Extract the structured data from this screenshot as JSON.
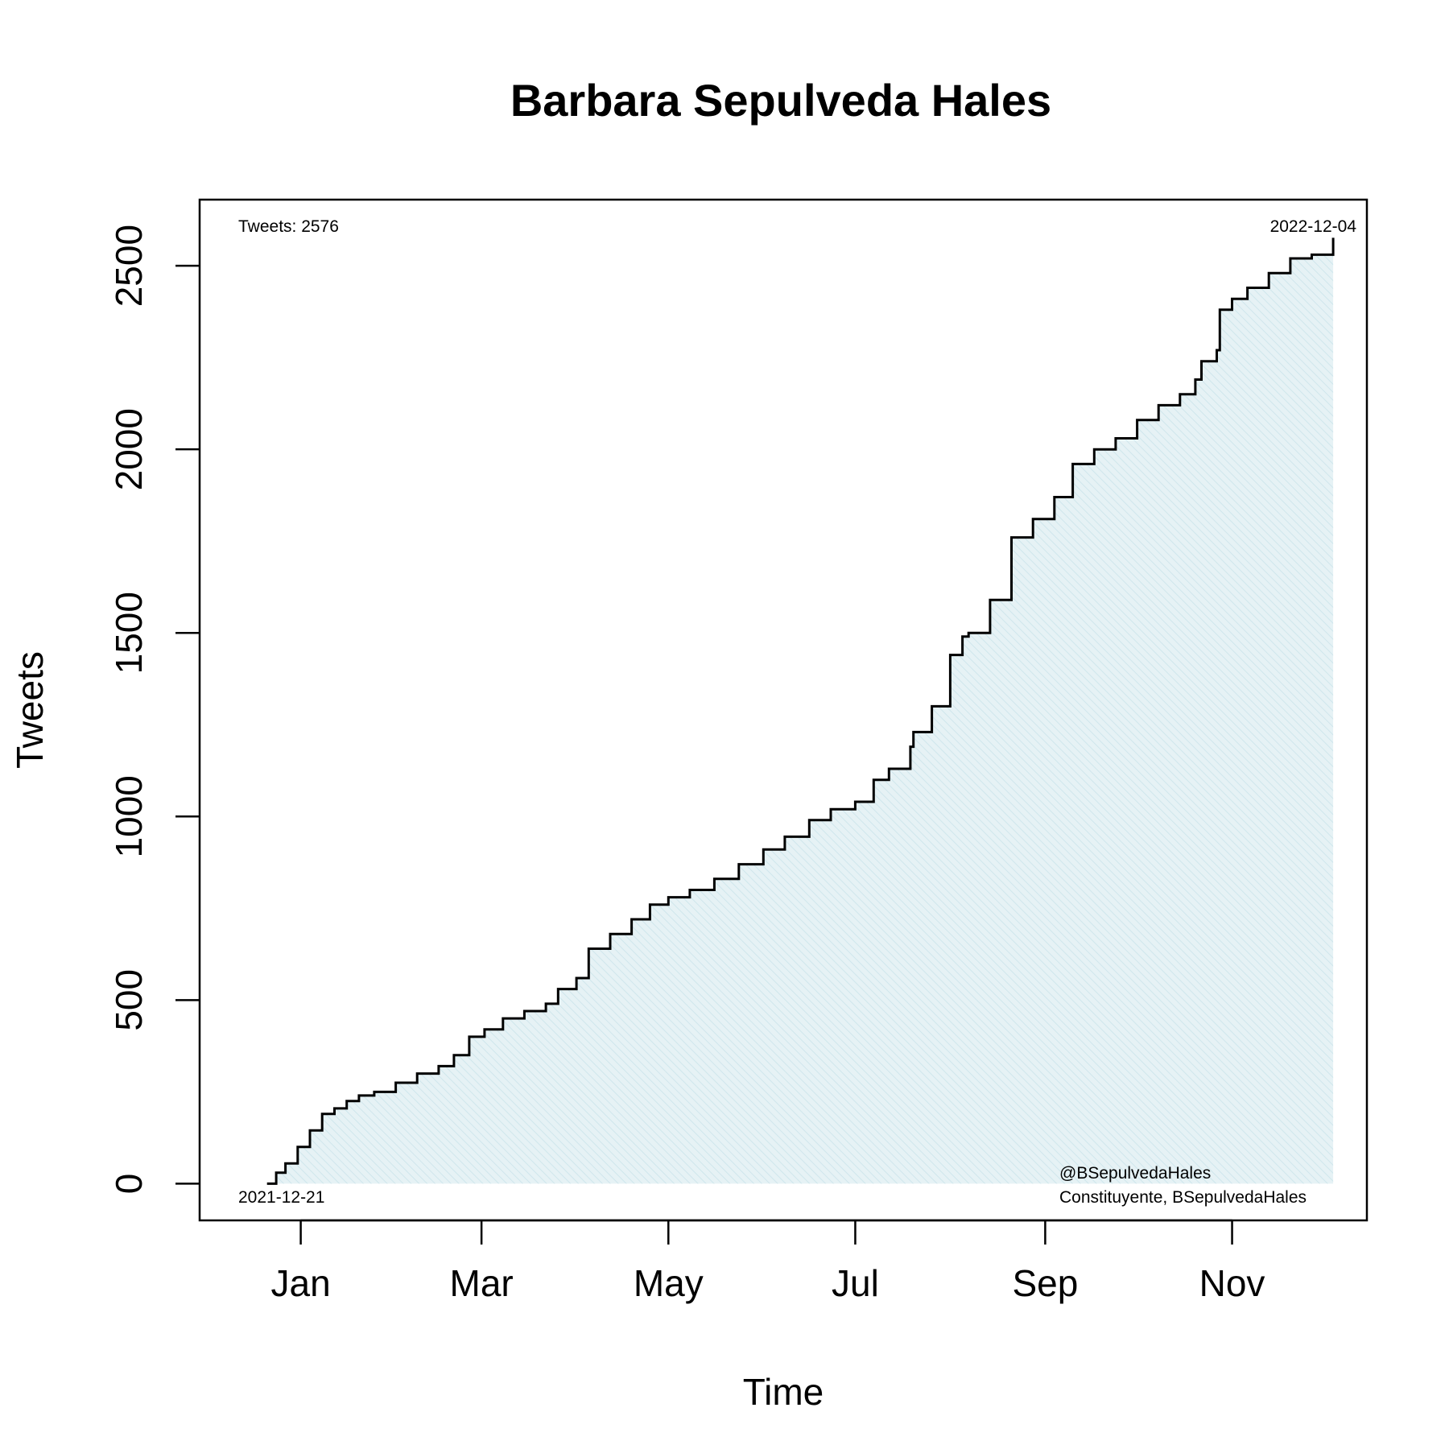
{
  "chart_data": {
    "type": "area",
    "title": "Barbara Sepulveda Hales",
    "xlabel": "Time",
    "ylabel": "Tweets",
    "ylim": [
      -100,
      2680
    ],
    "xlim": [
      "2021-11-29",
      "2022-12-15"
    ],
    "grid": false,
    "x_ticks": [
      {
        "date": "2022-01-01",
        "label": "Jan"
      },
      {
        "date": "2022-03-01",
        "label": "Mar"
      },
      {
        "date": "2022-05-01",
        "label": "May"
      },
      {
        "date": "2022-07-01",
        "label": "Jul"
      },
      {
        "date": "2022-09-01",
        "label": "Sep"
      },
      {
        "date": "2022-11-01",
        "label": "Nov"
      }
    ],
    "y_ticks": [
      0,
      500,
      1000,
      1500,
      2000,
      2500
    ],
    "annotations": {
      "top_left": "Tweets: 2576",
      "top_right": "2022-12-04",
      "bottom_left": "2021-12-21",
      "bottom_right_line1": "@BSepulvedaHales",
      "bottom_right_line2": "Constituyente, BSepulvedaHales"
    },
    "fill_color": "#e6f2f5",
    "line_color": "#000000",
    "series": [
      {
        "x": [
          "2021-12-21",
          "2021-12-24",
          "2021-12-27",
          "2021-12-31",
          "2022-01-04",
          "2022-01-08",
          "2022-01-12",
          "2022-01-16",
          "2022-01-20",
          "2022-01-25",
          "2022-02-01",
          "2022-02-08",
          "2022-02-15",
          "2022-02-20",
          "2022-02-25",
          "2022-03-02",
          "2022-03-08",
          "2022-03-15",
          "2022-03-22",
          "2022-03-26",
          "2022-04-01",
          "2022-04-05",
          "2022-04-12",
          "2022-04-19",
          "2022-04-25",
          "2022-05-01",
          "2022-05-08",
          "2022-05-16",
          "2022-05-24",
          "2022-06-01",
          "2022-06-08",
          "2022-06-16",
          "2022-06-23",
          "2022-07-01",
          "2022-07-07",
          "2022-07-12",
          "2022-07-19",
          "2022-07-20",
          "2022-07-26",
          "2022-08-01",
          "2022-08-05",
          "2022-08-07",
          "2022-08-14",
          "2022-08-21",
          "2022-08-28",
          "2022-09-04",
          "2022-09-10",
          "2022-09-17",
          "2022-09-24",
          "2022-10-01",
          "2022-10-08",
          "2022-10-15",
          "2022-10-20",
          "2022-10-22",
          "2022-10-27",
          "2022-10-28",
          "2022-11-01",
          "2022-11-06",
          "2022-11-13",
          "2022-11-20",
          "2022-11-27",
          "2022-12-04"
        ],
        "y": [
          0,
          30,
          55,
          100,
          145,
          190,
          205,
          225,
          240,
          250,
          275,
          300,
          320,
          350,
          400,
          420,
          450,
          470,
          490,
          530,
          560,
          640,
          680,
          720,
          760,
          780,
          800,
          830,
          870,
          910,
          945,
          990,
          1020,
          1040,
          1100,
          1130,
          1190,
          1230,
          1300,
          1440,
          1490,
          1500,
          1590,
          1760,
          1810,
          1870,
          1960,
          2000,
          2030,
          2080,
          2120,
          2150,
          2190,
          2240,
          2270,
          2380,
          2410,
          2440,
          2480,
          2520,
          2530,
          2576
        ]
      }
    ]
  }
}
